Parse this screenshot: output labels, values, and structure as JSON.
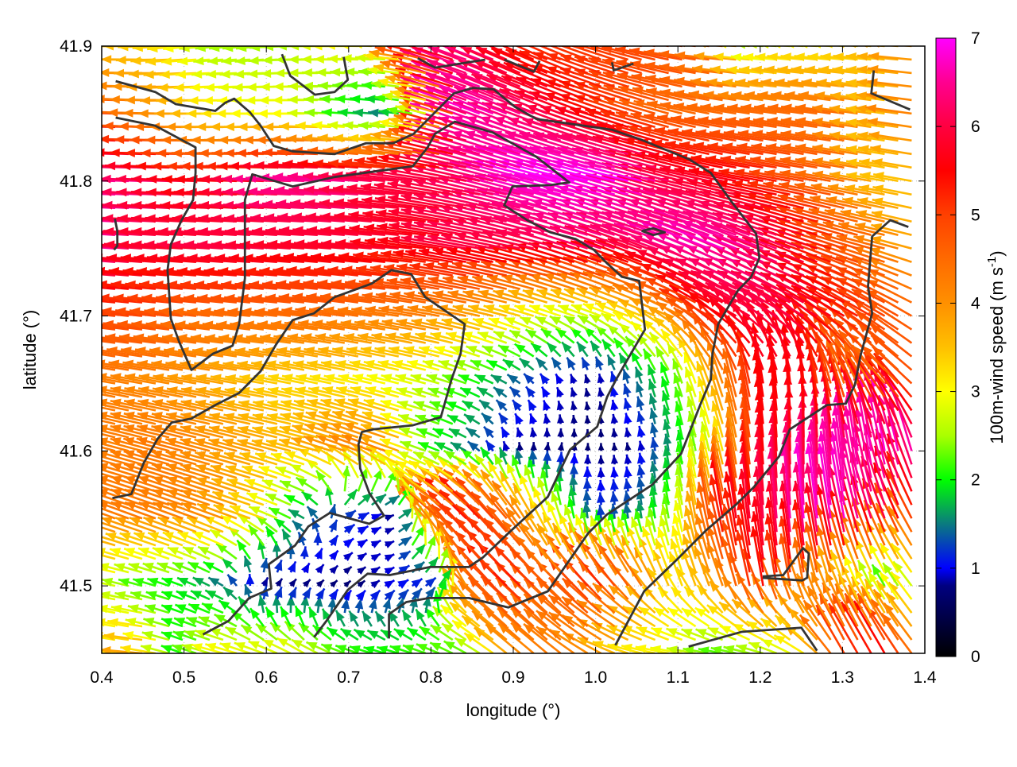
{
  "chart_data": {
    "type": "vector-field",
    "xlabel": "longitude (°)",
    "ylabel": "latitude (°)",
    "xlim": [
      0.4,
      1.4
    ],
    "ylim": [
      41.45,
      41.9
    ],
    "xticks": [
      "0.4",
      "0.5",
      "0.6",
      "0.7",
      "0.8",
      "0.9",
      "1.0",
      "1.1",
      "1.2",
      "1.3",
      "1.4"
    ],
    "yticks": [
      "41.5",
      "41.6",
      "41.7",
      "41.8",
      "41.9"
    ],
    "grid": true,
    "colorbar": {
      "label": "100m-wind speed (m s",
      "label_sup": "-1",
      "label_end": ")",
      "range": [
        0,
        7
      ],
      "ticks": [
        "0",
        "1",
        "2",
        "3",
        "4",
        "5",
        "6",
        "7"
      ],
      "stops": [
        [
          0,
          "#000000"
        ],
        [
          0.8,
          "#000080"
        ],
        [
          1,
          "#0000ff"
        ],
        [
          1.5,
          "#0a7a80"
        ],
        [
          2,
          "#00ff00"
        ],
        [
          2.5,
          "#aaff00"
        ],
        [
          3,
          "#ffff00"
        ],
        [
          3.5,
          "#ffc000"
        ],
        [
          4,
          "#ff9000"
        ],
        [
          4.5,
          "#ff6a00"
        ],
        [
          5,
          "#ff4000"
        ],
        [
          5.5,
          "#ff0000"
        ],
        [
          6,
          "#ff0040"
        ],
        [
          6.5,
          "#ff0090"
        ],
        [
          7,
          "#ff00ff"
        ]
      ]
    },
    "wind_grid": {
      "lon": [
        0.4,
        0.45,
        0.5,
        0.55,
        0.6,
        0.65,
        0.7,
        0.75,
        0.8,
        0.85,
        0.9,
        0.95,
        1.0,
        1.05,
        1.1,
        1.15,
        1.2,
        1.25,
        1.3,
        1.35,
        1.4
      ],
      "lat": [
        41.9,
        41.85,
        41.8,
        41.75,
        41.7,
        41.65,
        41.6,
        41.55,
        41.5,
        41.45
      ],
      "speed": [
        [
          3.5,
          3.5,
          3.2,
          2.5,
          2.5,
          2.5,
          3,
          3,
          5.5,
          6.5,
          5.5,
          5,
          5,
          5,
          5,
          4.5,
          2.5,
          3,
          3,
          3.5,
          4
        ],
        [
          5.5,
          4.5,
          4,
          3.3,
          3,
          3,
          2,
          1.5,
          3,
          6.8,
          6.5,
          6,
          5.5,
          5,
          4.5,
          4.5,
          4.5,
          4.5,
          4.5,
          3.5,
          4.5
        ],
        [
          6.5,
          6.5,
          6,
          5.5,
          5.8,
          6.5,
          6.5,
          6,
          6,
          6,
          6.5,
          7,
          7,
          7,
          6,
          5.8,
          5.5,
          5,
          4.5,
          3.5,
          3.5
        ],
        [
          6.8,
          6,
          5.8,
          6,
          6,
          5.8,
          5.8,
          5.8,
          5.5,
          6,
          6,
          6,
          6.3,
          6,
          6.5,
          6.8,
          6.5,
          6,
          5,
          4.5,
          3.5
        ],
        [
          5,
          5,
          4.8,
          4.5,
          4.5,
          4.5,
          4.5,
          4.3,
          4.3,
          4,
          3.5,
          3,
          2.8,
          3.3,
          4,
          5.5,
          6,
          6,
          5.5,
          5,
          4.5
        ],
        [
          4.3,
          4.2,
          4,
          3.8,
          3.5,
          3.3,
          3.2,
          3,
          2.8,
          2.2,
          1.5,
          1,
          0.8,
          1.5,
          2.2,
          4,
          5.5,
          5.5,
          4.5,
          4.5,
          5
        ],
        [
          4.3,
          4.2,
          4.3,
          4,
          3.8,
          3.5,
          4,
          4.2,
          2.2,
          1.5,
          0.8,
          0.8,
          0.7,
          0.8,
          1.8,
          3,
          5.5,
          5.8,
          6.5,
          6.8,
          6.5
        ],
        [
          4.2,
          4.3,
          4.2,
          4,
          3.2,
          1.5,
          1.2,
          0.8,
          4.5,
          5.5,
          4.5,
          2.8,
          1.2,
          1.5,
          2.5,
          5.5,
          6,
          6.8,
          6.8,
          6,
          4.5
        ],
        [
          3,
          2.2,
          2,
          1.5,
          0.8,
          0.8,
          0.7,
          1,
          1.2,
          4.5,
          5.5,
          4.5,
          5.3,
          4.5,
          3.2,
          4,
          5.5,
          4.5,
          3.5,
          2.2,
          3
        ],
        [
          3,
          3.8,
          2,
          3,
          2.8,
          2.8,
          2.2,
          2,
          2.2,
          2.3,
          4,
          4.3,
          4,
          3.2,
          3,
          2.2,
          2.5,
          3,
          5,
          5.5,
          4
        ]
      ],
      "direction_deg": [
        [
          180,
          180,
          185,
          185,
          185,
          180,
          180,
          175,
          165,
          160,
          155,
          155,
          160,
          165,
          170,
          175,
          175,
          175,
          175,
          175,
          175
        ],
        [
          178,
          178,
          180,
          180,
          180,
          180,
          175,
          175,
          165,
          160,
          158,
          158,
          160,
          162,
          165,
          170,
          172,
          172,
          172,
          172,
          172
        ],
        [
          178,
          178,
          178,
          178,
          178,
          178,
          176,
          175,
          172,
          168,
          165,
          165,
          165,
          165,
          165,
          168,
          170,
          170,
          170,
          170,
          170
        ],
        [
          176,
          176,
          176,
          176,
          176,
          176,
          175,
          175,
          172,
          170,
          168,
          165,
          162,
          160,
          160,
          158,
          158,
          160,
          162,
          165,
          165
        ],
        [
          174,
          174,
          174,
          174,
          174,
          174,
          172,
          172,
          170,
          168,
          165,
          162,
          160,
          158,
          155,
          150,
          150,
          150,
          150,
          150,
          150
        ],
        [
          170,
          170,
          170,
          170,
          170,
          168,
          168,
          166,
          165,
          160,
          150,
          120,
          100,
          110,
          110,
          110,
          100,
          95,
          110,
          130,
          140
        ],
        [
          165,
          165,
          165,
          165,
          165,
          165,
          160,
          160,
          160,
          150,
          100,
          80,
          90,
          100,
          100,
          105,
          95,
          90,
          95,
          100,
          110
        ],
        [
          160,
          160,
          160,
          160,
          160,
          150,
          30,
          20,
          140,
          135,
          130,
          110,
          95,
          100,
          100,
          100,
          95,
          95,
          100,
          110,
          120
        ],
        [
          170,
          165,
          160,
          150,
          60,
          45,
          40,
          30,
          40,
          130,
          135,
          135,
          130,
          125,
          110,
          110,
          100,
          100,
          110,
          120,
          130
        ],
        [
          170,
          175,
          160,
          165,
          160,
          150,
          160,
          165,
          160,
          150,
          140,
          140,
          150,
          165,
          170,
          170,
          165,
          150,
          120,
          120,
          130
        ]
      ]
    },
    "coastlines": [
      [
        [
          0.417,
          41.874
        ],
        [
          0.465,
          41.866
        ],
        [
          0.49,
          41.857
        ],
        [
          0.538,
          41.852
        ],
        [
          0.55,
          41.858
        ],
        [
          0.561,
          41.861
        ],
        [
          0.58,
          41.851
        ],
        [
          0.593,
          41.841
        ],
        [
          0.609,
          41.826
        ],
        [
          0.632,
          41.822
        ],
        [
          0.683,
          41.82
        ],
        [
          0.721,
          41.828
        ],
        [
          0.754,
          41.828
        ],
        [
          0.779,
          41.835
        ],
        [
          0.805,
          41.851
        ],
        [
          0.828,
          41.865
        ],
        [
          0.851,
          41.869
        ],
        [
          0.876,
          41.868
        ],
        [
          0.902,
          41.855
        ],
        [
          0.928,
          41.846
        ],
        [
          1.02,
          41.838
        ],
        [
          1.054,
          41.831
        ],
        [
          1.114,
          41.816
        ],
        [
          1.14,
          41.806
        ],
        [
          1.166,
          41.784
        ],
        [
          1.195,
          41.761
        ],
        [
          1.199,
          41.743
        ],
        [
          1.189,
          41.729
        ],
        [
          1.173,
          41.719
        ],
        [
          1.149,
          41.694
        ],
        [
          1.142,
          41.672
        ],
        [
          1.14,
          41.653
        ],
        [
          1.127,
          41.634
        ],
        [
          1.104,
          41.598
        ],
        [
          1.069,
          41.575
        ],
        [
          1.014,
          41.553
        ],
        [
          0.991,
          41.539
        ],
        [
          0.942,
          41.496
        ],
        [
          0.894,
          41.484
        ],
        [
          0.846,
          41.491
        ],
        [
          0.798,
          41.491
        ],
        [
          0.77,
          41.488
        ],
        [
          0.749,
          41.479
        ],
        [
          0.749,
          41.461
        ]
      ],
      [
        [
          0.417,
          41.847
        ],
        [
          0.465,
          41.841
        ],
        [
          0.514,
          41.825
        ],
        [
          0.514,
          41.806
        ],
        [
          0.511,
          41.786
        ],
        [
          0.497,
          41.771
        ],
        [
          0.484,
          41.753
        ],
        [
          0.48,
          41.734
        ],
        [
          0.484,
          41.698
        ],
        [
          0.494,
          41.681
        ],
        [
          0.509,
          41.66
        ],
        [
          0.535,
          41.672
        ],
        [
          0.559,
          41.678
        ],
        [
          0.567,
          41.694
        ],
        [
          0.574,
          41.728
        ],
        [
          0.574,
          41.786
        ],
        [
          0.583,
          41.805
        ],
        [
          0.632,
          41.796
        ],
        [
          0.683,
          41.803
        ],
        [
          0.778,
          41.811
        ],
        [
          0.796,
          41.825
        ],
        [
          0.805,
          41.835
        ],
        [
          0.829,
          41.844
        ],
        [
          0.875,
          41.836
        ],
        [
          0.928,
          41.818
        ],
        [
          0.968,
          41.799
        ],
        [
          0.945,
          41.797
        ],
        [
          0.899,
          41.796
        ],
        [
          0.889,
          41.782
        ],
        [
          0.917,
          41.771
        ],
        [
          0.945,
          41.762
        ],
        [
          0.976,
          41.757
        ],
        [
          0.998,
          41.749
        ],
        [
          1.014,
          41.739
        ],
        [
          1.032,
          41.729
        ],
        [
          1.053,
          41.726
        ],
        [
          1.06,
          41.69
        ],
        [
          1.04,
          41.669
        ],
        [
          1.025,
          41.653
        ],
        [
          1.014,
          41.64
        ],
        [
          1.002,
          41.618
        ],
        [
          0.969,
          41.601
        ],
        [
          0.942,
          41.566
        ],
        [
          0.894,
          41.539
        ],
        [
          0.863,
          41.521
        ],
        [
          0.846,
          41.514
        ],
        [
          0.799,
          41.514
        ],
        [
          0.75,
          41.508
        ],
        [
          0.723,
          41.509
        ],
        [
          0.699,
          41.497
        ],
        [
          0.673,
          41.474
        ],
        [
          0.658,
          41.462
        ]
      ],
      [
        [
          0.413,
          41.565
        ],
        [
          0.436,
          41.568
        ],
        [
          0.451,
          41.591
        ],
        [
          0.468,
          41.609
        ],
        [
          0.485,
          41.621
        ],
        [
          0.509,
          41.624
        ],
        [
          0.538,
          41.634
        ],
        [
          0.567,
          41.643
        ],
        [
          0.593,
          41.659
        ],
        [
          0.612,
          41.679
        ],
        [
          0.632,
          41.697
        ],
        [
          0.658,
          41.702
        ],
        [
          0.683,
          41.714
        ],
        [
          0.728,
          41.724
        ],
        [
          0.752,
          41.734
        ],
        [
          0.776,
          41.731
        ],
        [
          0.793,
          41.714
        ],
        [
          0.841,
          41.694
        ],
        [
          0.836,
          41.672
        ],
        [
          0.825,
          41.653
        ],
        [
          0.812,
          41.625
        ],
        [
          0.778,
          41.619
        ],
        [
          0.73,
          41.616
        ],
        [
          0.716,
          41.614
        ],
        [
          0.712,
          41.605
        ],
        [
          0.714,
          41.587
        ],
        [
          0.725,
          41.569
        ],
        [
          0.743,
          41.552
        ],
        [
          0.725,
          41.546
        ],
        [
          0.677,
          41.554
        ],
        [
          0.651,
          41.544
        ],
        [
          0.635,
          41.53
        ],
        [
          0.603,
          41.516
        ],
        [
          0.606,
          41.498
        ],
        [
          0.579,
          41.491
        ],
        [
          0.554,
          41.474
        ],
        [
          0.523,
          41.464
        ]
      ],
      [
        [
          1.38,
          41.766
        ],
        [
          1.358,
          41.771
        ],
        [
          1.336,
          41.759
        ],
        [
          1.331,
          41.722
        ],
        [
          1.336,
          41.702
        ],
        [
          1.322,
          41.671
        ],
        [
          1.315,
          41.649
        ],
        [
          1.304,
          41.635
        ],
        [
          1.281,
          41.634
        ],
        [
          1.236,
          41.616
        ],
        [
          1.223,
          41.596
        ],
        [
          1.192,
          41.573
        ],
        [
          1.172,
          41.561
        ],
        [
          1.134,
          41.541
        ],
        [
          1.098,
          41.519
        ],
        [
          1.059,
          41.496
        ],
        [
          1.024,
          41.456
        ]
      ],
      [
        [
          1.203,
          41.507
        ],
        [
          1.228,
          41.508
        ],
        [
          1.252,
          41.528
        ],
        [
          1.259,
          41.524
        ],
        [
          1.257,
          41.506
        ],
        [
          1.251,
          41.504
        ],
        [
          1.203,
          41.506
        ]
      ],
      [
        [
          1.113,
          41.455
        ],
        [
          1.178,
          41.466
        ],
        [
          1.25,
          41.469
        ],
        [
          1.269,
          41.452
        ]
      ],
      [
        [
          0.619,
          41.894
        ],
        [
          0.629,
          41.878
        ],
        [
          0.659,
          41.864
        ],
        [
          0.683,
          41.866
        ],
        [
          0.699,
          41.875
        ],
        [
          0.694,
          41.892
        ]
      ],
      [
        [
          0.784,
          41.891
        ],
        [
          0.805,
          41.884
        ],
        [
          0.866,
          41.89
        ]
      ],
      [
        [
          0.889,
          41.89
        ],
        [
          0.925,
          41.881
        ],
        [
          0.932,
          41.889
        ]
      ],
      [
        [
          1.02,
          41.888
        ],
        [
          1.022,
          41.882
        ],
        [
          1.046,
          41.887
        ]
      ],
      [
        [
          1.338,
          41.882
        ],
        [
          1.335,
          41.865
        ],
        [
          1.382,
          41.853
        ]
      ],
      [
        [
          0.416,
          41.772
        ],
        [
          0.419,
          41.763
        ],
        [
          0.419,
          41.752
        ],
        [
          0.415,
          41.749
        ]
      ],
      [
        [
          1.056,
          41.763
        ],
        [
          1.07,
          41.765
        ],
        [
          1.084,
          41.762
        ],
        [
          1.07,
          41.76
        ],
        [
          1.056,
          41.763
        ]
      ]
    ]
  }
}
